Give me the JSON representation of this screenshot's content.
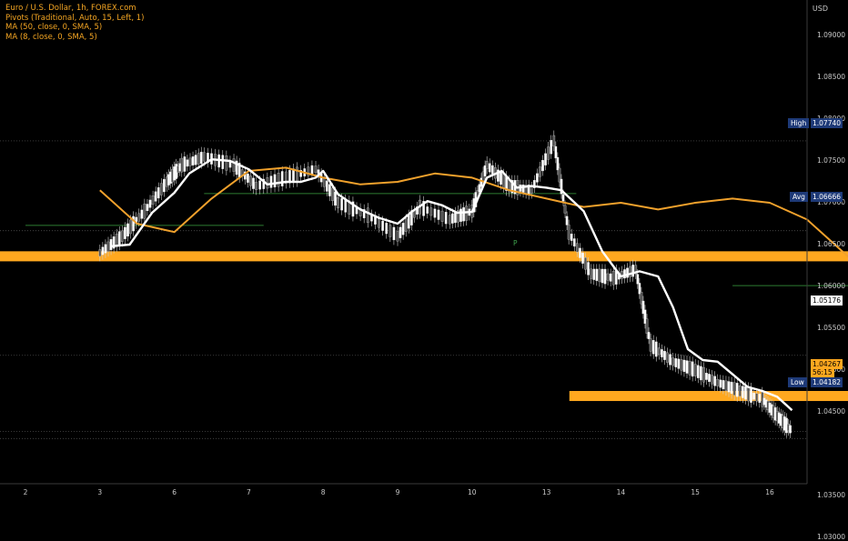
{
  "legend": {
    "line1": "Euro / U.S. Dollar, 1h, FOREX.com",
    "line2": "Pivots (Traditional, Auto, 15, Left, 1)",
    "line3": "MA (50, close, 0, SMA, 5)",
    "line4": "MA (8, close, 0, SMA, 5)"
  },
  "axis": {
    "unit": "USD"
  },
  "markers": {
    "high_label": "High",
    "high_value": "1.07740",
    "avg_label": "Avg",
    "avg_value": "1.06666",
    "ref_value": "1.05176",
    "current_value": "1.04267",
    "countdown": "56:15",
    "low_label": "Low",
    "low_value": "1.04182",
    "pivot_label": "P"
  },
  "colors": {
    "background": "#000000",
    "zones": "#ffa81f",
    "ma50": "#f0a12c",
    "ma8": "#ffffff",
    "pivot": "#2e7d32",
    "axis_text": "#c9c9c9",
    "tag_bg": "#1e3a78"
  },
  "chart_data": {
    "type": "line",
    "title": "Euro / U.S. Dollar, 1h, FOREX.com",
    "ylabel": "USD",
    "ylim": [
      1.025,
      1.0975
    ],
    "y_ticks": [
      {
        "value": 1.09,
        "label": "1.09000"
      },
      {
        "value": 1.085,
        "label": "1.08500"
      },
      {
        "value": 1.08,
        "label": "1.08000"
      },
      {
        "value": 1.075,
        "label": "1.07500"
      },
      {
        "value": 1.07,
        "label": "1.07000"
      },
      {
        "value": 1.065,
        "label": "1.06500"
      },
      {
        "value": 1.06,
        "label": "1.06000"
      },
      {
        "value": 1.055,
        "label": "1.05500"
      },
      {
        "value": 1.05,
        "label": "1.05000"
      },
      {
        "value": 1.045,
        "label": "1.04500"
      },
      {
        "value": 1.035,
        "label": "1.03500"
      },
      {
        "value": 1.03,
        "label": "1.03000"
      }
    ],
    "x_ticks": [
      "2",
      "3",
      "6",
      "7",
      "8",
      "9",
      "10",
      "13",
      "14",
      "15",
      "16"
    ],
    "series": [
      {
        "values": [
          [
            1,
            1.0715
          ],
          [
            1.5,
            1.0675
          ],
          [
            2,
            1.0665
          ],
          [
            2.5,
            1.0705
          ],
          [
            3,
            1.0738
          ],
          [
            3.5,
            1.0742
          ],
          [
            4,
            1.073
          ],
          [
            4.5,
            1.0722
          ],
          [
            5,
            1.0725
          ],
          [
            5.5,
            1.0735
          ],
          [
            6,
            1.073
          ],
          [
            6.5,
            1.0715
          ],
          [
            7,
            1.0705
          ],
          [
            7.5,
            1.0695
          ],
          [
            8,
            1.07
          ],
          [
            8.5,
            1.0692
          ],
          [
            9,
            1.07
          ],
          [
            9.5,
            1.0705
          ],
          [
            10,
            1.07
          ],
          [
            10.5,
            1.068
          ],
          [
            11,
            1.064
          ],
          [
            11.5,
            1.06
          ],
          [
            12,
            1.0565
          ]
        ]
      },
      {
        "values": [
          [
            1.15,
            1.0648
          ],
          [
            1.4,
            1.065
          ],
          [
            1.7,
            1.0688
          ],
          [
            2.0,
            1.0712
          ],
          [
            2.2,
            1.0735
          ],
          [
            2.5,
            1.0752
          ],
          [
            2.75,
            1.075
          ],
          [
            3.0,
            1.074
          ],
          [
            3.25,
            1.0722
          ],
          [
            3.5,
            1.0725
          ],
          [
            3.7,
            1.0725
          ],
          [
            3.9,
            1.073
          ],
          [
            4.0,
            1.0738
          ],
          [
            4.2,
            1.071
          ],
          [
            4.5,
            1.0692
          ],
          [
            4.75,
            1.0682
          ],
          [
            5.0,
            1.0675
          ],
          [
            5.2,
            1.069
          ],
          [
            5.4,
            1.0702
          ],
          [
            5.6,
            1.0697
          ],
          [
            5.8,
            1.0688
          ],
          [
            6.0,
            1.0689
          ],
          [
            6.2,
            1.073
          ],
          [
            6.4,
            1.0738
          ],
          [
            6.6,
            1.0718
          ],
          [
            6.8,
            1.072
          ],
          [
            7.0,
            1.0718
          ],
          [
            7.2,
            1.0715
          ],
          [
            7.5,
            1.069
          ],
          [
            7.75,
            1.0642
          ],
          [
            8.0,
            1.0612
          ],
          [
            8.25,
            1.0618
          ],
          [
            8.5,
            1.0612
          ],
          [
            8.7,
            1.0575
          ],
          [
            8.9,
            1.0525
          ],
          [
            9.1,
            1.0512
          ],
          [
            9.3,
            1.051
          ],
          [
            9.5,
            1.0495
          ],
          [
            9.7,
            1.048
          ],
          [
            9.9,
            1.0475
          ],
          [
            10.1,
            1.0468
          ],
          [
            10.3,
            1.0452
          ]
        ]
      }
    ],
    "bands": [
      {
        "from": 1.063,
        "to": 1.0642,
        "x_range": [
          0,
          11.9
        ]
      },
      {
        "from": 1.0463,
        "to": 1.0475,
        "x_range": [
          7.65,
          11.9
        ]
      }
    ],
    "pivot_lines": [
      {
        "y": 1.0673,
        "x_range": [
          0,
          3.2
        ]
      },
      {
        "y": 1.0711,
        "x_range": [
          2.4,
          7.4
        ]
      },
      {
        "y": 1.0601,
        "x_range": [
          9.5,
          14.2
        ]
      }
    ],
    "reference_lines": [
      1.0774,
      1.06666,
      1.05176,
      1.04267,
      1.04182
    ],
    "candles": [
      [
        1,
        1.064
      ],
      [
        1.3,
        1.066
      ],
      [
        1.6,
        1.069
      ],
      [
        1.9,
        1.0725
      ],
      [
        2.1,
        1.0745
      ],
      [
        2.4,
        1.0755
      ],
      [
        2.8,
        1.0745
      ],
      [
        3.1,
        1.072
      ],
      [
        3.5,
        1.073
      ],
      [
        3.9,
        1.074
      ],
      [
        4.2,
        1.07
      ],
      [
        4.6,
        1.0685
      ],
      [
        5.0,
        1.066
      ],
      [
        5.3,
        1.0695
      ],
      [
        5.7,
        1.068
      ],
      [
        6.0,
        1.069
      ],
      [
        6.2,
        1.0745
      ],
      [
        6.5,
        1.072
      ],
      [
        6.8,
        1.0715
      ],
      [
        7.1,
        1.0774
      ],
      [
        7.3,
        1.0665
      ],
      [
        7.6,
        1.0615
      ],
      [
        7.9,
        1.061
      ],
      [
        8.2,
        1.062
      ],
      [
        8.4,
        1.053
      ],
      [
        8.7,
        1.051
      ],
      [
        9.0,
        1.05
      ],
      [
        9.3,
        1.0485
      ],
      [
        9.6,
        1.0475
      ],
      [
        9.9,
        1.0465
      ],
      [
        10.1,
        1.0445
      ],
      [
        10.3,
        1.0427
      ]
    ]
  }
}
